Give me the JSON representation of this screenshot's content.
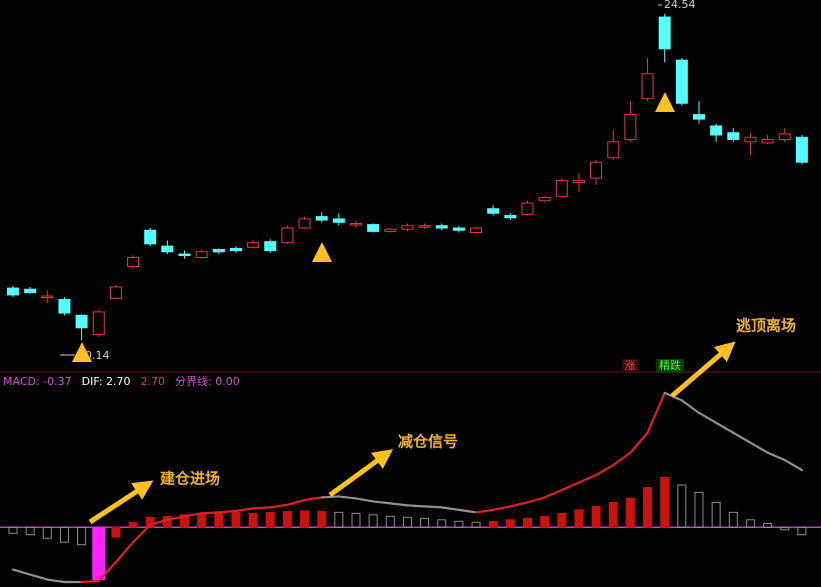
{
  "chart_data": [
    {
      "type": "candlestick",
      "high_label": "24.54",
      "low_label": "10.14",
      "ylim": [
        9.5,
        24.8
      ],
      "up_color": "#e83a3a",
      "down_color": "#54ffff",
      "open": [
        12.45,
        12.4,
        12.05,
        11.95,
        11.25,
        10.4,
        12.0,
        13.4,
        15.0,
        14.3,
        13.95,
        13.8,
        14.15,
        14.2,
        14.25,
        14.5,
        14.45,
        15.1,
        15.6,
        15.5,
        15.25,
        15.25,
        14.95,
        15.05,
        15.15,
        15.2,
        15.1,
        14.9,
        15.95,
        15.65,
        15.7,
        16.3,
        16.5,
        17.1,
        17.3,
        18.2,
        19.0,
        20.8,
        24.4,
        22.5,
        20.1,
        19.6,
        19.3,
        18.9,
        18.85,
        19.0,
        19.1
      ],
      "close": [
        12.15,
        12.25,
        12.1,
        11.35,
        10.7,
        11.4,
        12.5,
        13.8,
        14.4,
        14.05,
        13.9,
        14.05,
        14.05,
        14.1,
        14.45,
        14.1,
        15.1,
        15.5,
        15.45,
        15.35,
        15.3,
        14.95,
        15.05,
        15.2,
        15.2,
        15.1,
        15.0,
        15.1,
        15.75,
        15.55,
        16.2,
        16.45,
        17.2,
        17.2,
        18.0,
        18.9,
        20.1,
        21.9,
        23.0,
        20.6,
        19.9,
        19.2,
        19.0,
        19.1,
        19.0,
        19.25,
        18.0
      ],
      "high": [
        12.55,
        12.5,
        12.35,
        12.05,
        11.3,
        11.5,
        12.6,
        13.9,
        15.1,
        14.55,
        14.1,
        14.15,
        14.2,
        14.3,
        14.55,
        14.6,
        15.2,
        15.6,
        15.8,
        15.75,
        15.4,
        15.3,
        15.1,
        15.3,
        15.3,
        15.3,
        15.2,
        15.15,
        16.1,
        15.75,
        16.3,
        16.5,
        17.3,
        17.5,
        18.1,
        19.4,
        20.7,
        22.6,
        24.54,
        22.6,
        20.7,
        19.7,
        19.5,
        19.3,
        19.2,
        19.5,
        19.2
      ],
      "low": [
        12.05,
        12.2,
        11.8,
        11.25,
        10.14,
        10.3,
        11.95,
        13.3,
        14.3,
        13.95,
        13.75,
        13.75,
        13.95,
        14.0,
        14.2,
        14.0,
        14.4,
        15.05,
        15.35,
        15.2,
        15.1,
        14.9,
        14.9,
        14.95,
        15.05,
        15.0,
        14.9,
        14.85,
        15.65,
        15.45,
        15.65,
        16.25,
        16.5,
        16.7,
        17.0,
        18.1,
        18.9,
        20.7,
        22.4,
        20.5,
        19.7,
        18.9,
        18.9,
        18.3,
        18.8,
        18.9,
        17.9
      ]
    },
    {
      "type": "macd",
      "texts": [
        "MACD: -0.37",
        "DIF: 2.70",
        "2.70",
        "分界线: 0.00"
      ],
      "text_colors": [
        "#d050d0",
        "#ffffff",
        "#e83a3a",
        "#d050d0"
      ],
      "ylim": [
        -1.2,
        3.0
      ],
      "zero_color": "#c040c0",
      "histogram": [
        -0.12,
        -0.15,
        -0.22,
        -0.3,
        -0.35,
        -1.05,
        -0.2,
        0.1,
        0.2,
        0.22,
        0.25,
        0.27,
        0.3,
        0.3,
        0.28,
        0.3,
        0.32,
        0.33,
        0.32,
        0.3,
        0.28,
        0.25,
        0.22,
        0.2,
        0.18,
        0.15,
        0.12,
        0.1,
        0.12,
        0.15,
        0.18,
        0.22,
        0.28,
        0.35,
        0.42,
        0.5,
        0.58,
        0.8,
        1.0,
        0.85,
        0.7,
        0.5,
        0.3,
        0.15,
        0.08,
        -0.05,
        -0.15
      ],
      "histogram_colors": [
        "#909090",
        "#909090",
        "#909090",
        "#909090",
        "#909090",
        "#ff20ff",
        "#cc1111",
        "#cc1111",
        "#cc1111",
        "#cc1111",
        "#cc1111",
        "#cc1111",
        "#cc1111",
        "#cc1111",
        "#cc1111",
        "#cc1111",
        "#cc1111",
        "#cc1111",
        "#cc1111",
        "#909090",
        "#909090",
        "#909090",
        "#909090",
        "#909090",
        "#909090",
        "#909090",
        "#909090",
        "#909090",
        "#cc1111",
        "#cc1111",
        "#cc1111",
        "#cc1111",
        "#cc1111",
        "#cc1111",
        "#cc1111",
        "#cc1111",
        "#cc1111",
        "#cc1111",
        "#cc1111",
        "#909090",
        "#909090",
        "#909090",
        "#909090",
        "#909090",
        "#909090",
        "#909090",
        "#909090"
      ],
      "line": [
        -0.85,
        -0.95,
        -1.05,
        -1.1,
        -1.1,
        -1.08,
        -0.7,
        -0.3,
        0.05,
        0.15,
        0.22,
        0.28,
        0.3,
        0.33,
        0.38,
        0.4,
        0.45,
        0.55,
        0.6,
        0.62,
        0.58,
        0.52,
        0.48,
        0.44,
        0.42,
        0.4,
        0.35,
        0.3,
        0.35,
        0.42,
        0.5,
        0.6,
        0.75,
        0.9,
        1.05,
        1.25,
        1.5,
        1.9,
        2.7,
        2.55,
        2.3,
        2.1,
        1.9,
        1.7,
        1.5,
        1.35,
        1.15
      ],
      "line_colors": [
        "#909090",
        "#909090",
        "#909090",
        "#909090",
        "#909090",
        "#e02020",
        "#e02020",
        "#e02020",
        "#e02020",
        "#e02020",
        "#e02020",
        "#e02020",
        "#e02020",
        "#e02020",
        "#e02020",
        "#e02020",
        "#e02020",
        "#e02020",
        "#e02020",
        "#909090",
        "#909090",
        "#909090",
        "#909090",
        "#909090",
        "#909090",
        "#909090",
        "#909090",
        "#909090",
        "#e02020",
        "#e02020",
        "#e02020",
        "#e02020",
        "#e02020",
        "#e02020",
        "#e02020",
        "#e02020",
        "#e02020",
        "#e02020",
        "#e02020",
        "#909090",
        "#909090",
        "#909090",
        "#909090",
        "#909090",
        "#909090",
        "#909090",
        "#909090"
      ]
    },
    {
      "type": "annotations",
      "signals": [
        "建仓进场",
        "减仓信号",
        "逃顶离场"
      ],
      "tags": [
        "涨",
        "精跌"
      ]
    }
  ]
}
